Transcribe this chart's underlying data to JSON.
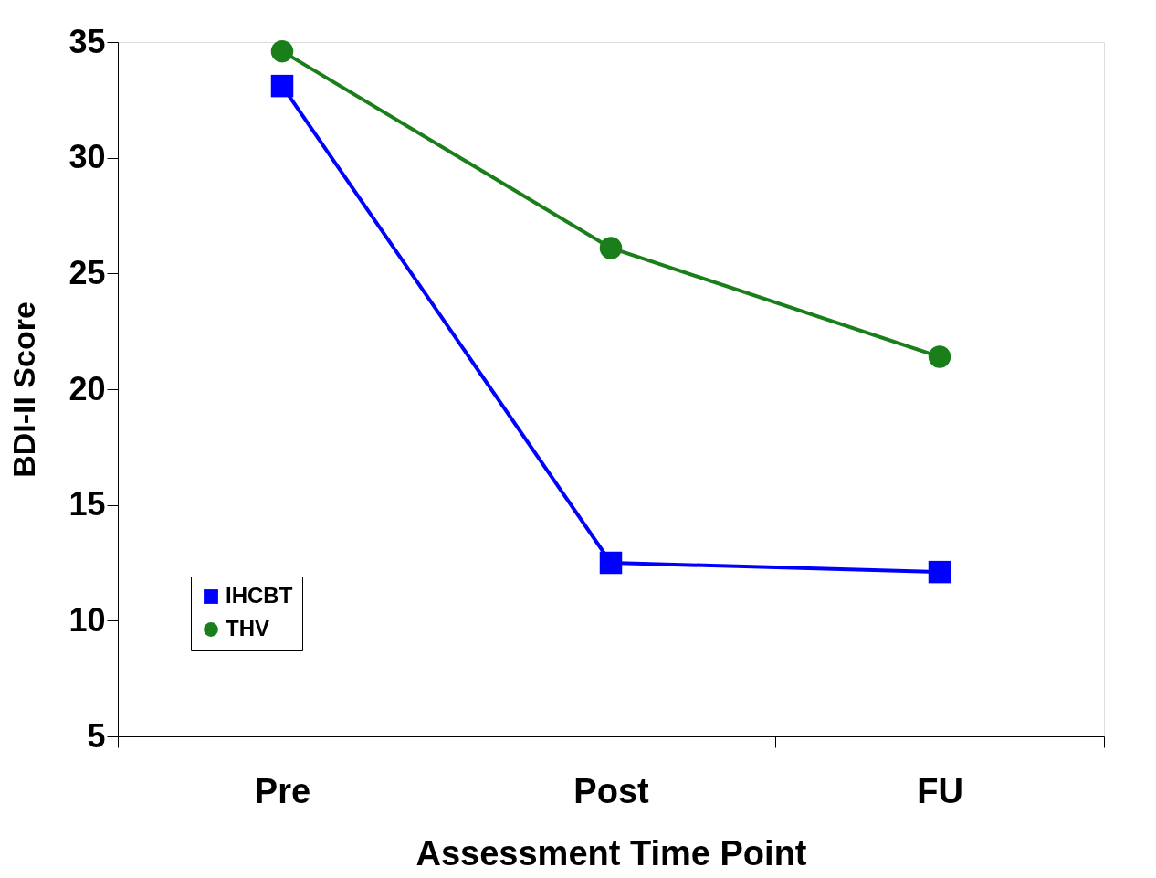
{
  "chart_data": {
    "type": "line",
    "xlabel": "Assessment Time Point",
    "ylabel": "BDI-II Score",
    "categories": [
      "Pre",
      "Post",
      "FU"
    ],
    "series": [
      {
        "name": "IHCBT",
        "color": "#0000ff",
        "marker": "square",
        "values": [
          33.1,
          12.5,
          12.1
        ]
      },
      {
        "name": "THV",
        "color": "#1a7f1a",
        "marker": "circle",
        "values": [
          34.6,
          26.1,
          21.4
        ]
      }
    ],
    "ylim": [
      5,
      35
    ],
    "yticks": [
      5,
      10,
      15,
      20,
      25,
      30,
      35
    ],
    "grid": false,
    "legend": "bottom left",
    "line_style": "solid"
  }
}
